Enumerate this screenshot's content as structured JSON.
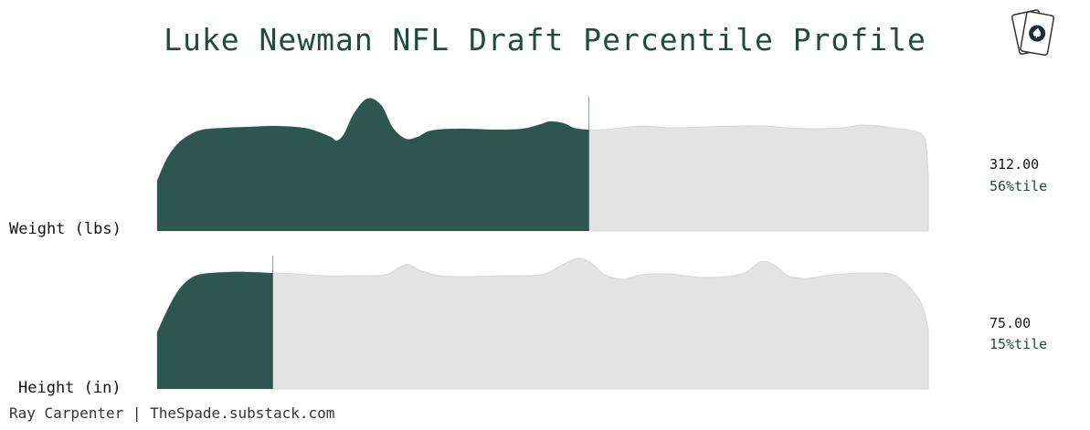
{
  "title": "Luke Newman NFL Draft Percentile Profile",
  "footer": "Ray Carpenter | TheSpade.substack.com",
  "colors": {
    "fill": "#2d564e",
    "background_dist": "#e3e3e3",
    "title": "#1f4a3e",
    "percentile_text": "#1f4a3e"
  },
  "logo_icon": "spade-playing-cards-icon",
  "chart_data": {
    "type": "area",
    "title": "Luke Newman NFL Draft Percentile Profile",
    "rows": [
      {
        "label": "Weight (lbs)",
        "value": "312.00",
        "percentile_text": "56%tile",
        "percentile": 56
      },
      {
        "label": "Height (in)",
        "value": "75.00",
        "percentile_text": "15%tile",
        "percentile": 15
      }
    ]
  }
}
